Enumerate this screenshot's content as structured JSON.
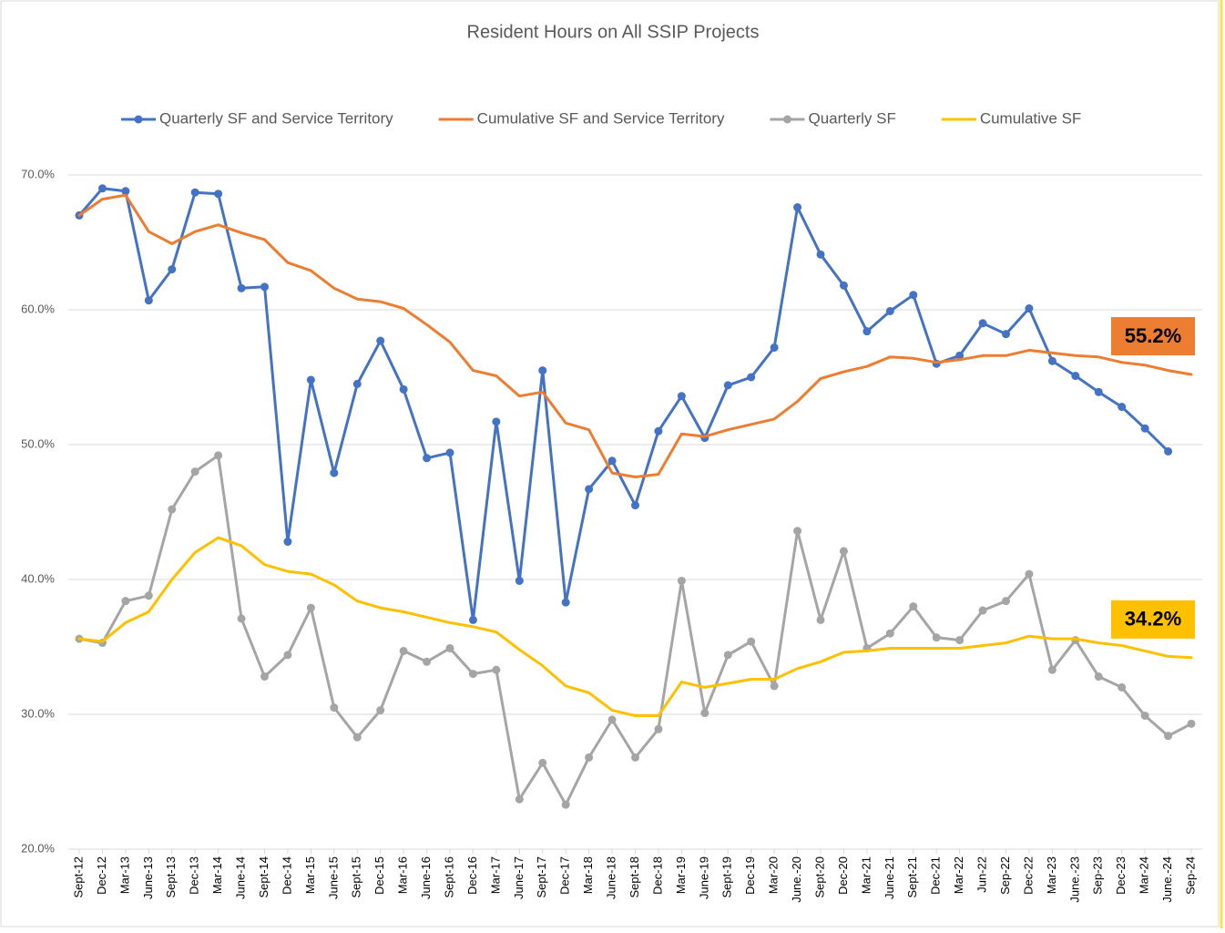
{
  "chart_data": {
    "type": "line",
    "title": "Resident Hours on All SSIP Projects",
    "categories": [
      "Sept-12",
      "Dec-12",
      "Mar-13",
      "June-13",
      "Sept-13",
      "Dec-13",
      "Mar-14",
      "June-14",
      "Sept-14",
      "Dec-14",
      "Mar-15",
      "June-15",
      "Sept-15",
      "Dec-15",
      "Mar-16",
      "June-16",
      "Sept-16",
      "Dec-16",
      "Mar-17",
      "June-17",
      "Sept-17",
      "Dec-17",
      "Mar-18",
      "June-18",
      "Sept-18",
      "Dec-18",
      "Mar-19",
      "June-19",
      "Sept-19",
      "Dec-19",
      "Mar-20",
      "June.-20",
      "Sept-20",
      "Dec-20",
      "Mar-21",
      "June-21",
      "Sept-21",
      "Dec-21",
      "Mar-22",
      "Jun-22",
      "Sep-22",
      "Dec-22",
      "Mar-23",
      "June.-23",
      "Sep-23",
      "Dec-23",
      "Mar-24",
      "June.-24",
      "Sep-24"
    ],
    "series": [
      {
        "name": "Quarterly SF and Service Territory",
        "color": "#4472c4",
        "marker": true,
        "values": [
          67.0,
          69.0,
          68.8,
          60.7,
          63.0,
          68.7,
          68.6,
          61.6,
          61.7,
          42.8,
          54.8,
          47.9,
          54.5,
          57.7,
          54.1,
          49.0,
          49.4,
          37.0,
          51.7,
          39.9,
          55.5,
          38.3,
          46.7,
          48.8,
          45.5,
          51.0,
          53.6,
          50.5,
          54.4,
          55.0,
          57.2,
          67.6,
          64.1,
          61.8,
          58.4,
          59.9,
          61.1,
          56.0,
          56.6,
          59.0,
          58.2,
          60.1,
          56.2,
          55.1,
          53.9,
          52.8,
          51.2,
          49.5,
          null
        ]
      },
      {
        "name": "Cumulative SF and Service Territory",
        "color": "#ed7d31",
        "marker": false,
        "values": [
          67.0,
          68.2,
          68.5,
          65.8,
          64.9,
          65.8,
          66.3,
          65.7,
          65.2,
          63.5,
          62.9,
          61.6,
          60.8,
          60.6,
          60.1,
          58.9,
          57.6,
          55.5,
          55.1,
          53.6,
          53.9,
          51.6,
          51.1,
          47.9,
          47.6,
          47.8,
          50.8,
          50.6,
          51.1,
          51.5,
          51.9,
          53.2,
          54.9,
          55.4,
          55.8,
          56.5,
          56.4,
          56.1,
          56.3,
          56.6,
          56.6,
          57.0,
          56.8,
          56.6,
          56.5,
          56.1,
          55.9,
          55.5,
          55.2
        ]
      },
      {
        "name": "Quarterly SF",
        "color": "#a5a5a5",
        "marker": true,
        "values": [
          35.6,
          35.3,
          38.4,
          38.8,
          45.2,
          48.0,
          49.2,
          37.1,
          32.8,
          34.4,
          37.9,
          30.5,
          28.3,
          30.3,
          34.7,
          33.9,
          34.9,
          33.0,
          33.3,
          23.7,
          26.4,
          23.3,
          26.8,
          29.6,
          26.8,
          28.9,
          39.9,
          30.1,
          34.4,
          35.4,
          32.1,
          43.6,
          37.0,
          42.1,
          34.9,
          36.0,
          38.0,
          35.7,
          35.5,
          37.7,
          38.4,
          40.4,
          33.3,
          35.5,
          32.8,
          32.0,
          29.9,
          28.4,
          29.3
        ]
      },
      {
        "name": "Cumulative SF",
        "color": "#ffc000",
        "marker": false,
        "values": [
          35.6,
          35.4,
          36.8,
          37.6,
          40.0,
          42.0,
          43.1,
          42.5,
          41.1,
          40.6,
          40.4,
          39.6,
          38.4,
          37.9,
          37.6,
          37.2,
          36.8,
          36.5,
          36.1,
          34.8,
          33.6,
          32.1,
          31.6,
          30.3,
          29.9,
          29.9,
          32.4,
          32.0,
          32.3,
          32.6,
          32.6,
          33.4,
          33.9,
          34.6,
          34.7,
          34.9,
          34.9,
          34.9,
          34.9,
          35.1,
          35.3,
          35.8,
          35.6,
          35.6,
          35.3,
          35.1,
          34.7,
          34.3,
          34.2
        ]
      }
    ],
    "ylim": [
      20,
      70
    ],
    "yticks": [
      {
        "value": 20,
        "label": "20.0%"
      },
      {
        "value": 30,
        "label": "30.0%"
      },
      {
        "value": 40,
        "label": "40.0%"
      },
      {
        "value": 50,
        "label": "50.0%"
      },
      {
        "value": 60,
        "label": "60.0%"
      },
      {
        "value": 70,
        "label": "70.0%"
      }
    ],
    "grid": true,
    "legend": "top",
    "annotations": [
      {
        "label": "55.2%",
        "value": 55.2,
        "color": "#ed7d31"
      },
      {
        "label": "34.2%",
        "value": 34.2,
        "color": "#ffc000"
      }
    ]
  }
}
